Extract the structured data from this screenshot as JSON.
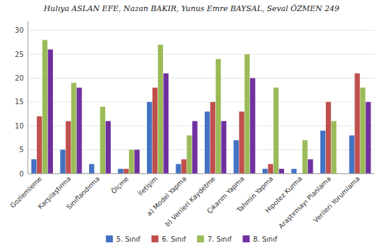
{
  "chart_data": {
    "type": "bar",
    "title": "Hulıya ASLAN EFE, Nazan BAKIR, Yunus Emre BAYSAL, Seval ÖZMEN    249",
    "categories": [
      "Gozlemleme",
      "Karşılaştırma",
      "Sınıflandırma",
      "Ölçme",
      "İletişim",
      "a) Model Yapma",
      "b) Verileri Kaydetme",
      "Çıkarım Yapma",
      "Tahmin Yapma",
      "Hipotez Kurma",
      "Araştırmayı Planlama",
      "Verileri Yorumlama"
    ],
    "series": [
      {
        "name": "5. Sınıf",
        "color": "#4472C4",
        "values": [
          3,
          5,
          2,
          1,
          15,
          2,
          13,
          7,
          1,
          1,
          9,
          8
        ]
      },
      {
        "name": "6. Sınıf",
        "color": "#C0504D",
        "values": [
          12,
          11,
          0,
          1,
          18,
          3,
          15,
          13,
          2,
          0,
          15,
          21
        ]
      },
      {
        "name": "7. Sınıf",
        "color": "#9BBB59",
        "values": [
          28,
          19,
          14,
          5,
          27,
          8,
          24,
          25,
          18,
          7,
          11,
          18
        ]
      },
      {
        "name": "8. Sınıf",
        "color": "#7030A0",
        "values": [
          26,
          18,
          11,
          5,
          21,
          11,
          11,
          20,
          1,
          3,
          0,
          15
        ]
      }
    ],
    "ylim": [
      0,
      32
    ],
    "yticks": [
      0,
      5,
      10,
      15,
      20,
      25,
      30
    ],
    "grid": true,
    "legend": "bottom"
  }
}
